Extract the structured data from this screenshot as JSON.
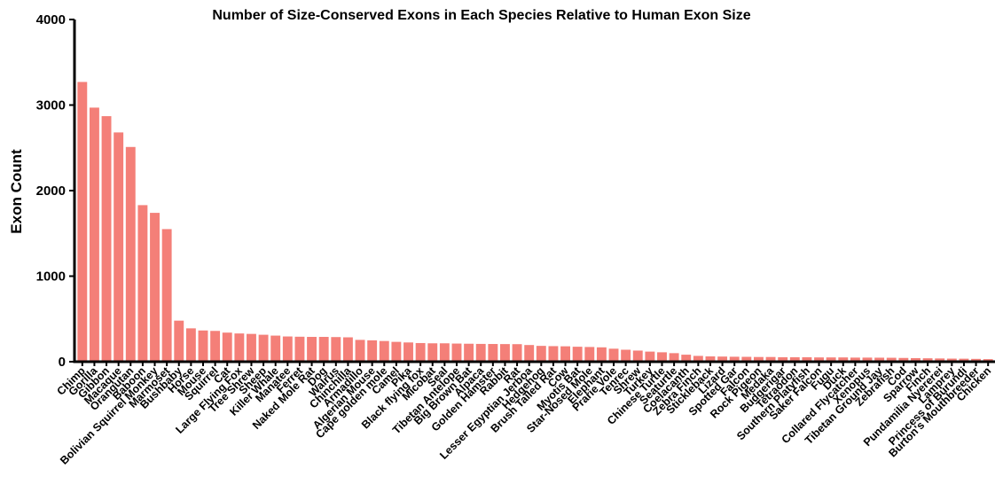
{
  "chart_data": {
    "type": "bar",
    "title": "Number of Size-Conserved Exons in Each Species Relative to Human  Exon Size",
    "xlabel": "",
    "ylabel": "Exon Count",
    "ylim": [
      0,
      4000
    ],
    "yticks": [
      "0",
      "1000",
      "2000",
      "3000",
      "4000"
    ],
    "bar_color": "#f47f78",
    "grid": false,
    "categories": [
      "Chimp",
      "Gorilla",
      "Gibbon",
      "Macaque",
      "Orangutan",
      "Baboon",
      "Bolivian Squirrel Monkey",
      "Marmoset",
      "Bushbaby",
      "Horse",
      "Mouse",
      "Squirrel",
      "Cat",
      "Large Flying Fox",
      "Tree Shrew",
      "Sheep",
      "Killer Whale",
      "Manatee",
      "Ferret",
      "Naked Mole Rat",
      "Dog",
      "Walrus",
      "Chinchilla",
      "Armadillo",
      "Algerian Mouse",
      "Cape golden mole",
      "Camel",
      "Pika",
      "Black flying fox",
      "Micobat",
      "Seal",
      "Tibetan Antelope",
      "Big Brown Bat",
      "Alpaca",
      "Golden Hamster",
      "Rabbit",
      "Rat",
      "Lesser Egyptian Jerboa",
      "Hedgehog",
      "Brush Tailed Rat",
      "Cow",
      "Myotis Bat",
      "Star-Nosed Mole",
      "Elephant",
      "Prarie Vole",
      "Tenrec",
      "Shrew",
      "Turkey",
      "Chinese Turtle",
      "Seaturtle",
      "Coelacanth",
      "Zebra Finch",
      "Stickleback",
      "Lizard",
      "Spotted Gar",
      "Falcon",
      "Rock Pigeon",
      "Medaka",
      "Budgerigar",
      "Tetraodon",
      "Southern Platyfish",
      "Saker Falcon",
      "Fugu",
      "Duck",
      "Collared Flycatcher",
      "Xenopus",
      "Tibetan Ground Jay",
      "Zebrafish",
      "Cod",
      "Sparrow",
      "Finch",
      "Pundamilia Nyererei",
      "Lamprey",
      "Princess of Burundi",
      "Burton's Mouthbreeder",
      "Chicken"
    ],
    "values": [
      3270,
      2970,
      2870,
      2680,
      2510,
      1830,
      1740,
      1550,
      480,
      390,
      365,
      360,
      340,
      330,
      325,
      315,
      305,
      295,
      292,
      290,
      290,
      288,
      285,
      255,
      250,
      242,
      232,
      225,
      218,
      215,
      215,
      212,
      210,
      208,
      207,
      206,
      205,
      195,
      185,
      182,
      180,
      175,
      172,
      168,
      152,
      140,
      130,
      118,
      110,
      100,
      82,
      68,
      62,
      60,
      58,
      57,
      55,
      55,
      52,
      52,
      52,
      50,
      50,
      50,
      48,
      48,
      47,
      46,
      44,
      42,
      40,
      38,
      36,
      35,
      33,
      30
    ]
  }
}
